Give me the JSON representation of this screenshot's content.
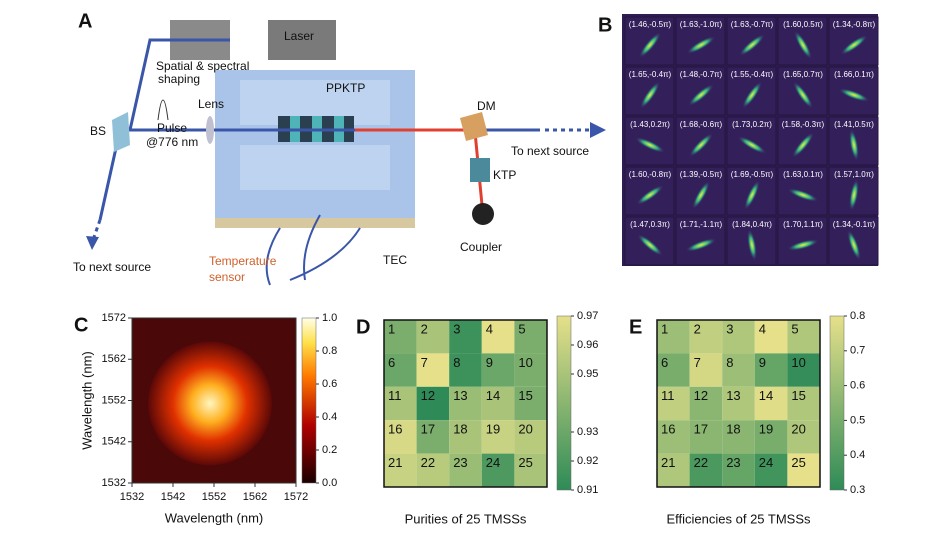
{
  "panel_a": {
    "label": "A",
    "labels": [
      "Laser",
      "Spatial & spectral",
      "shaping",
      "Lens",
      "PPKTP",
      "DM",
      "BS",
      "Pulse",
      "@776 nm",
      "To next source",
      "KTP",
      "Coupler",
      "To next source",
      "Temperature",
      "sensor",
      "TEC"
    ]
  },
  "panel_b": {
    "label": "B",
    "cells": [
      "(1.46,-0.5π)",
      "(1.63,-1.0π)",
      "(1.63,-0.7π)",
      "(1.60,0.5π)",
      "(1.34,-0.8π)",
      "(1.65,-0.4π)",
      "(1.48,-0.7π)",
      "(1.55,-0.4π)",
      "(1.65,0.7π)",
      "(1.66,0.1π)",
      "(1.43,0.2π)",
      "(1.68,-0.6π)",
      "(1.73,0.2π)",
      "(1.58,-0.3π)",
      "(1.41,0.5π)",
      "(1.60,-0.8π)",
      "(1.39,-0.5π)",
      "(1.69,-0.5π)",
      "(1.63,0.1π)",
      "(1.57,1.0π)",
      "(1.47,0.3π)",
      "(1.71,-1.1π)",
      "(1.84,0.4π)",
      "(1.70,1.1π)",
      "(1.34,-0.1π)"
    ]
  },
  "chart_data": [
    {
      "type": "heatmap",
      "label": "C",
      "xlabel": "Wavelength (nm)",
      "ylabel": "Wavelength (nm)",
      "xlim": [
        1532,
        1572
      ],
      "ylim": [
        1532,
        1572
      ],
      "xticks": [
        1532,
        1542,
        1552,
        1562,
        1572
      ],
      "yticks": [
        1532,
        1542,
        1552,
        1562,
        1572
      ],
      "clim": [
        0,
        1
      ],
      "cticks": [
        {
          "value": 0,
          "label": "0.0"
        },
        0.2,
        0.4,
        0.6,
        0.8,
        {
          "value": 1,
          "label": "1.0"
        }
      ]
    },
    {
      "type": "matrix",
      "label": "D",
      "title": "Purities of 25 TMSSs",
      "cell_labels": [
        1,
        2,
        3,
        4,
        5,
        6,
        7,
        8,
        9,
        10,
        11,
        12,
        13,
        14,
        15,
        16,
        17,
        18,
        19,
        20,
        21,
        22,
        23,
        24,
        25
      ],
      "values": [
        0.935,
        0.95,
        0.915,
        0.97,
        0.935,
        0.93,
        0.97,
        0.915,
        0.93,
        0.935,
        0.95,
        0.91,
        0.945,
        0.95,
        0.935,
        0.965,
        0.935,
        0.95,
        0.96,
        0.955,
        0.96,
        0.955,
        0.945,
        0.92,
        0.95
      ],
      "clim": [
        0.91,
        0.97
      ],
      "cticks": [
        0.91,
        0.92,
        0.93,
        0.95,
        0.96,
        0.97
      ]
    },
    {
      "type": "matrix",
      "label": "E",
      "title": "Efficiencies of 25 TMSSs",
      "cell_labels": [
        1,
        2,
        3,
        4,
        5,
        6,
        7,
        8,
        9,
        10,
        11,
        12,
        13,
        14,
        15,
        16,
        17,
        18,
        19,
        20,
        21,
        22,
        23,
        24,
        25
      ],
      "values": [
        0.6,
        0.7,
        0.65,
        0.8,
        0.65,
        0.5,
        0.75,
        0.6,
        0.45,
        0.32,
        0.7,
        0.55,
        0.65,
        0.78,
        0.65,
        0.6,
        0.55,
        0.55,
        0.5,
        0.65,
        0.65,
        0.38,
        0.45,
        0.35,
        0.8
      ],
      "clim": [
        0.3,
        0.8
      ],
      "cticks": [
        0.3,
        0.4,
        0.5,
        0.6,
        0.7,
        0.8
      ]
    }
  ]
}
